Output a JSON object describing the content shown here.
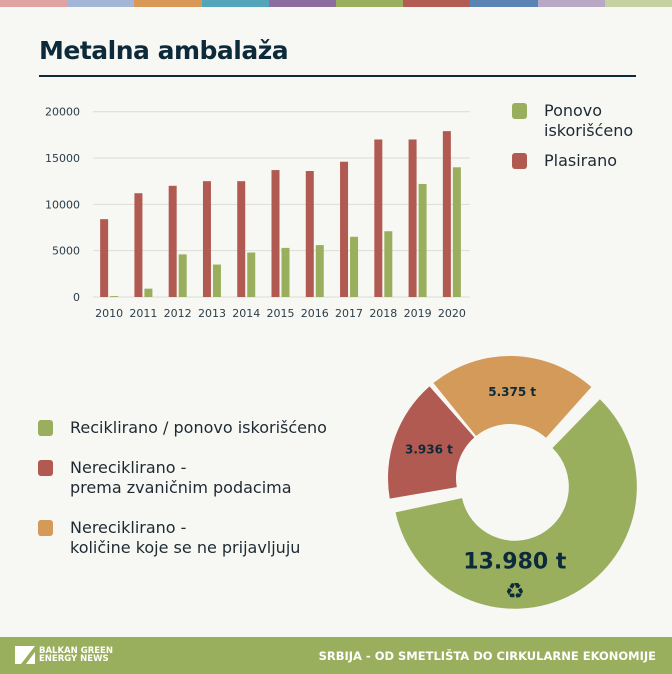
{
  "stripe_colors": [
    "#dfa3a3",
    "#a4b6d8",
    "#d99856",
    "#53a6ba",
    "#8b6e9f",
    "#9aaf5e",
    "#b35c54",
    "#5a84b4",
    "#b9a7c6",
    "#c6d1a1"
  ],
  "title": "Metalna ambalaža",
  "colors": {
    "red": "#b05a52",
    "green": "#9aaf5e",
    "orange": "#d49a5a",
    "text": "#0d2a3a"
  },
  "chart_data": [
    {
      "type": "bar",
      "categories": [
        "2010",
        "2011",
        "2012",
        "2013",
        "2014",
        "2015",
        "2016",
        "2017",
        "2018",
        "2019",
        "2020"
      ],
      "series": [
        {
          "name": "Plasirano",
          "color": "#b05a52",
          "values": [
            8400,
            11200,
            12000,
            12500,
            12500,
            13700,
            13600,
            14600,
            17000,
            17000,
            17900
          ]
        },
        {
          "name": "Ponovo iskorišćeno",
          "color": "#9aaf5e",
          "values": [
            100,
            900,
            4600,
            3500,
            4800,
            5300,
            5600,
            6500,
            7100,
            12200,
            14000
          ]
        }
      ],
      "yticks": [
        "0",
        "5000",
        "10000",
        "15000",
        "20000"
      ],
      "ylim": [
        0,
        20000
      ],
      "grid": true,
      "legend": "right",
      "legend_items": [
        {
          "label": "Ponovo\niskorišćeno",
          "color": "#9aaf5e"
        },
        {
          "label": "Plasirano",
          "color": "#b05a52"
        }
      ]
    },
    {
      "type": "pie",
      "donut": true,
      "slices": [
        {
          "label": "Reciklirano / ponovo iskorišćeno",
          "value": 13980,
          "value_label": "13.980 t",
          "color": "#9aaf5e",
          "exploded": true,
          "icon": "recycle-icon"
        },
        {
          "label": "Nereciklirano -\nprema zvaničnim podacima",
          "value": 3936,
          "value_label": "3.936 t",
          "color": "#b05a52"
        },
        {
          "label": "Nereciklirano -\nkoličine koje se ne prijavljuju",
          "value": 5375,
          "value_label": "5.375 t",
          "color": "#d49a5a"
        }
      ],
      "legend": "left"
    }
  ],
  "footer": {
    "logo": "BALKAN GREEN\nENERGY NEWS",
    "title": "SRBIJA - OD SMETLIŠTA DO CIRKULARNE EKONOMIJE"
  }
}
